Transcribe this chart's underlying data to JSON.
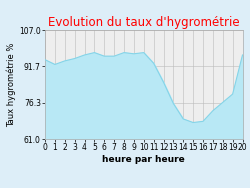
{
  "title": "Evolution du taux d'hygrométrie",
  "xlabel": "heure par heure",
  "ylabel": "Taux hygrométrie %",
  "ylim": [
    61.0,
    107.0
  ],
  "yticks": [
    61.0,
    76.3,
    91.7,
    107.0
  ],
  "hours": [
    0,
    1,
    2,
    3,
    4,
    5,
    6,
    7,
    8,
    9,
    10,
    11,
    12,
    13,
    14,
    15,
    16,
    17,
    18,
    19,
    20
  ],
  "values": [
    94.5,
    92.5,
    94.0,
    95.0,
    96.5,
    97.5,
    96.0,
    96.0,
    97.5,
    97.0,
    97.5,
    93.0,
    85.0,
    76.0,
    69.5,
    68.0,
    68.5,
    73.0,
    76.5,
    80.0,
    96.5
  ],
  "line_color": "#85d4e8",
  "fill_color": "#b8e8f5",
  "bg_color": "#ddeef8",
  "plot_bg": "#eeeeee",
  "title_color": "#ff0000",
  "grid_color": "#bbbbbb",
  "title_fontsize": 8.5,
  "label_fontsize": 6.5,
  "tick_fontsize": 5.5,
  "ylabel_fontsize": 6.0
}
